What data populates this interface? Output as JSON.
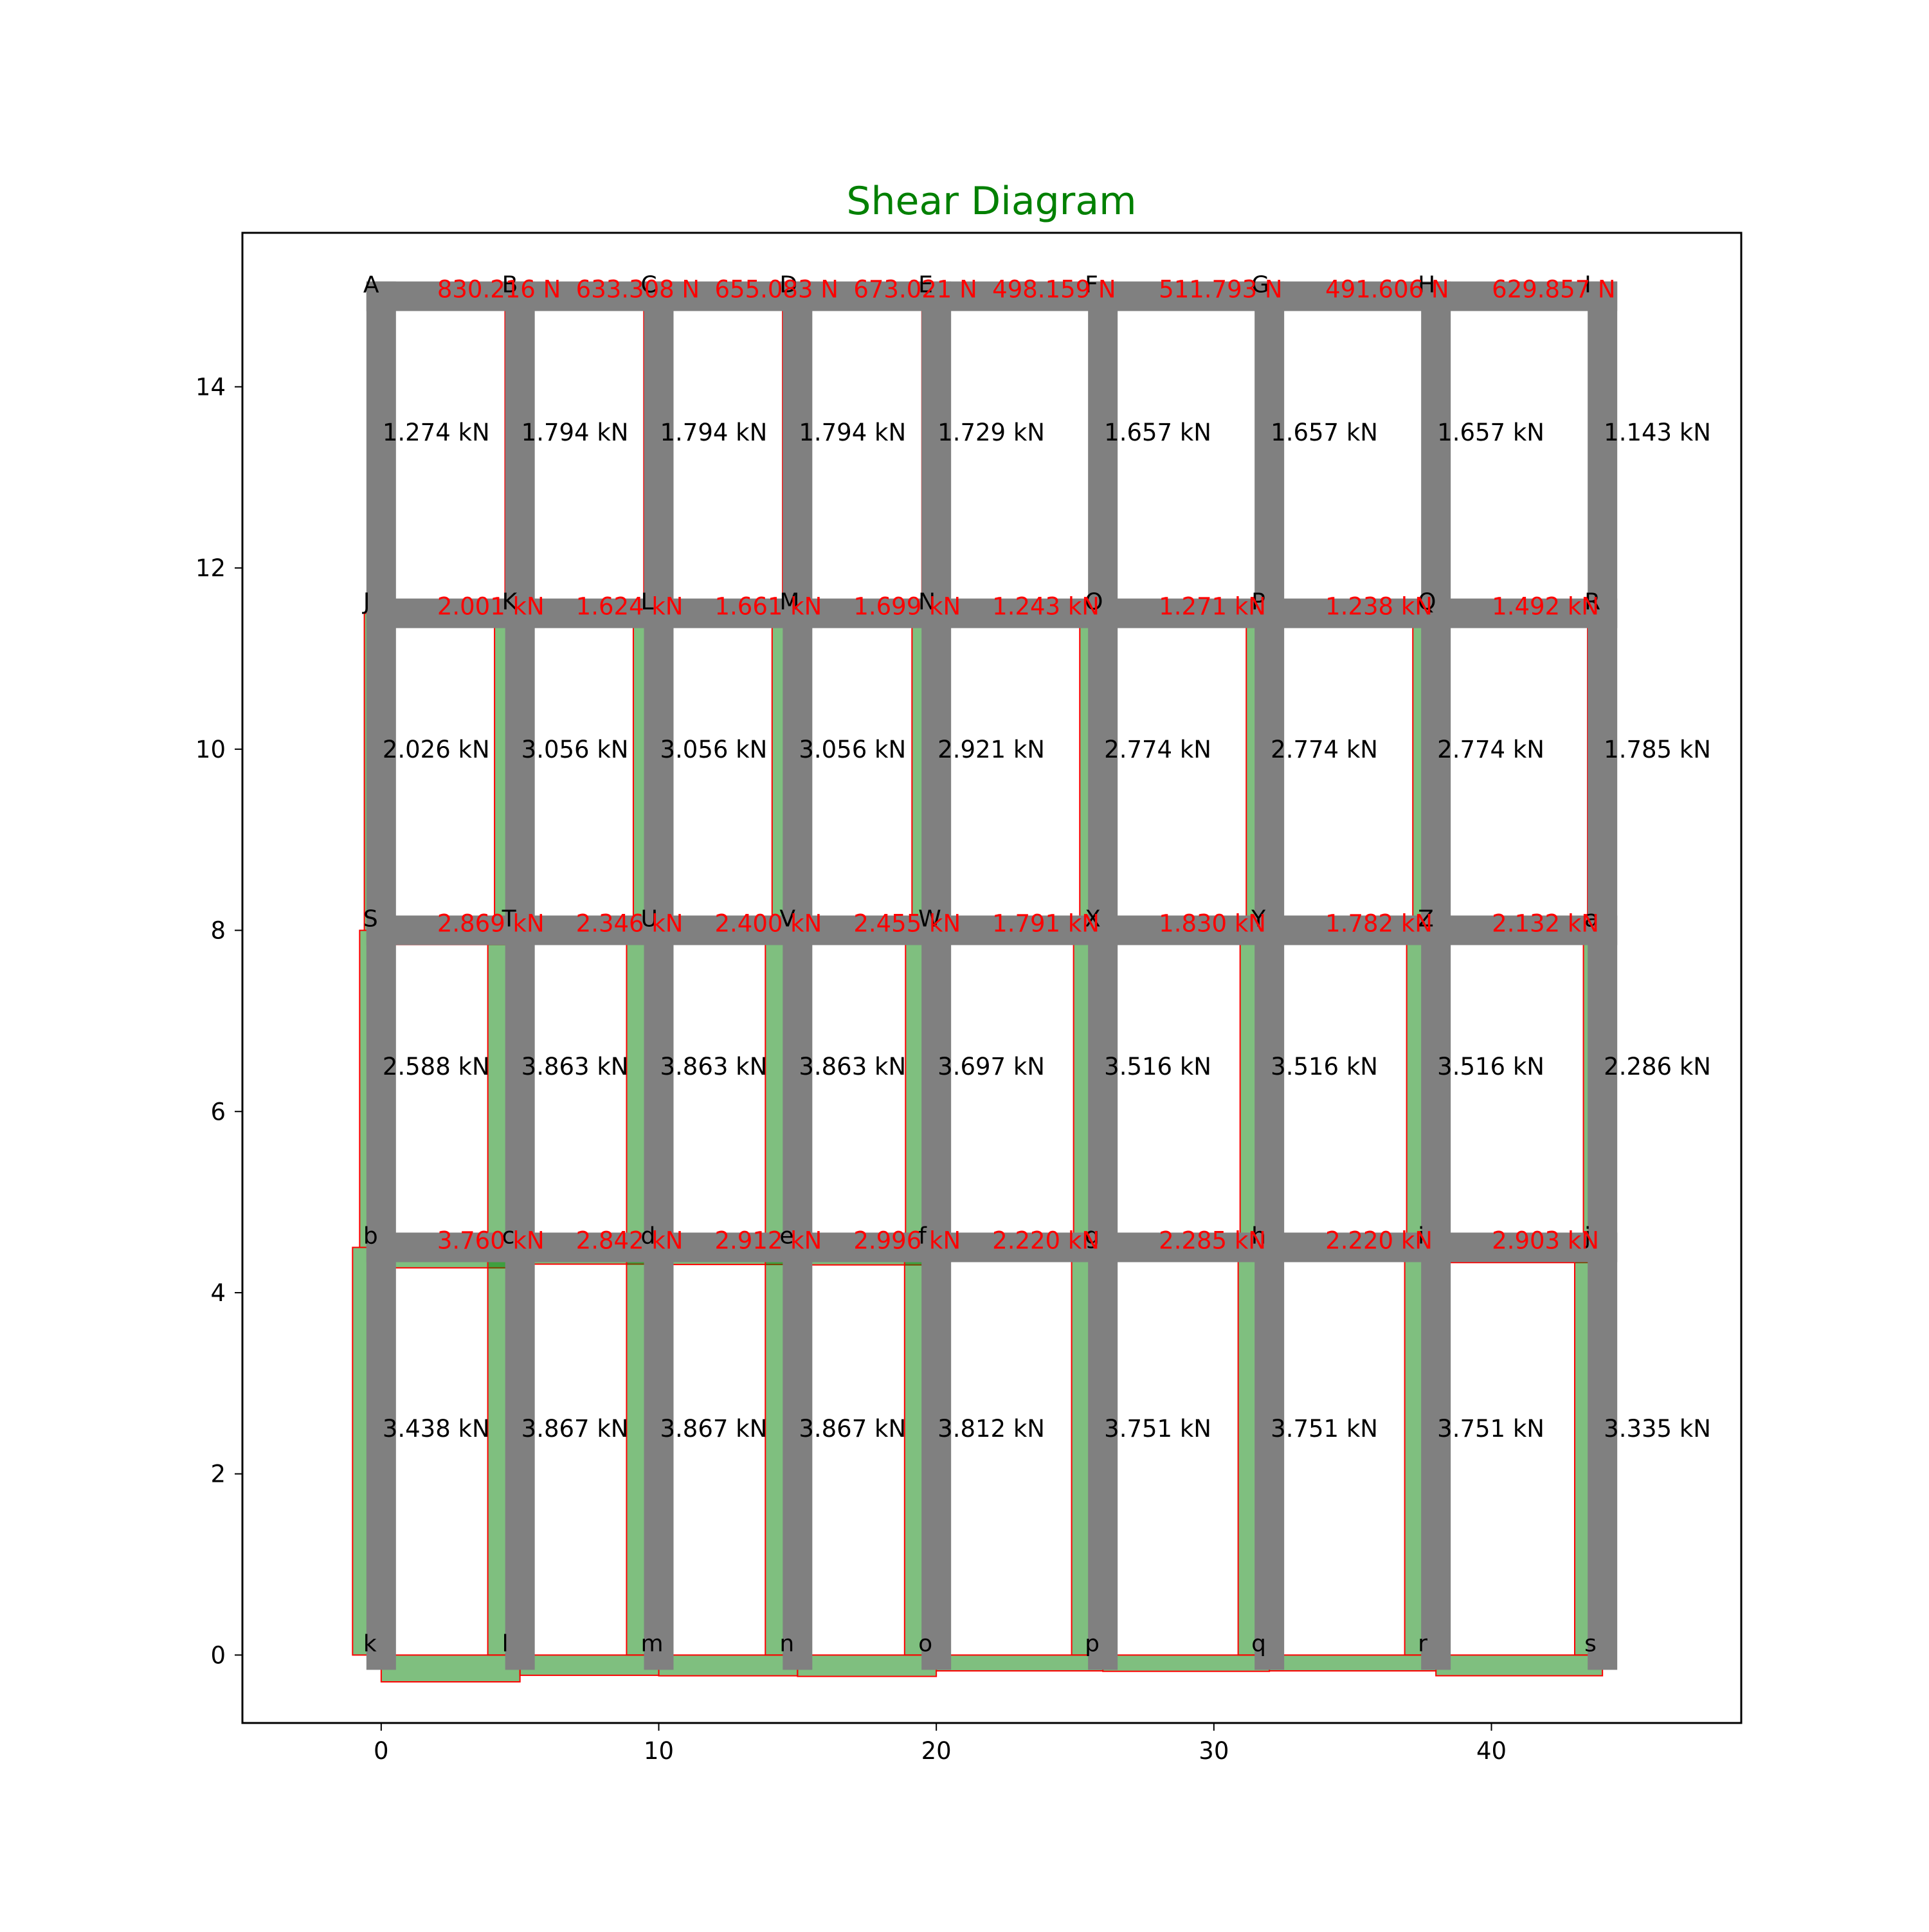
{
  "chart_data": {
    "type": "frame-shear-diagram",
    "title": "Shear Diagram",
    "title_color": "#008000",
    "frame_color": "#808080",
    "fill_color": "#008000",
    "outline_color": "#ff0000",
    "label_beam_color": "#ff0000",
    "label_column_color": "#000000",
    "xlim": [
      -5,
      49
    ],
    "ylim": [
      -0.75,
      15.7
    ],
    "xticks": [
      0,
      10,
      20,
      30,
      40
    ],
    "yticks": [
      0,
      2,
      4,
      6,
      8,
      10,
      12,
      14
    ],
    "column_x": [
      0,
      5,
      10,
      15,
      20,
      26,
      32,
      38,
      44
    ],
    "levels_y": [
      15,
      11.5,
      8,
      4.5,
      0
    ],
    "node_labels": [
      [
        "A",
        "B",
        "C",
        "D",
        "E",
        "F",
        "G",
        "H",
        "I"
      ],
      [
        "J",
        "K",
        "L",
        "M",
        "N",
        "O",
        "P",
        "Q",
        "R"
      ],
      [
        "S",
        "T",
        "U",
        "V",
        "W",
        "X",
        "Y",
        "Z",
        "a"
      ],
      [
        "b",
        "c",
        "d",
        "e",
        "f",
        "g",
        "h",
        "i",
        "j"
      ],
      [
        "k",
        "l",
        "m",
        "n",
        "o",
        "p",
        "q",
        "r",
        "s"
      ]
    ],
    "beam_shear_labels": [
      [
        "830.216 N",
        "633.308 N",
        "655.083 N",
        "673.021 N",
        "498.159 N",
        "511.793 N",
        "491.606 N",
        "629.857 N"
      ],
      [
        "2.001 kN",
        "1.624 kN",
        "1.661 kN",
        "1.699 kN",
        "1.243 kN",
        "1.271 kN",
        "1.238 kN",
        "1.492 kN"
      ],
      [
        "2.869 kN",
        "2.346 kN",
        "2.400 kN",
        "2.455 kN",
        "1.791 kN",
        "1.830 kN",
        "1.782 kN",
        "2.132 kN"
      ],
      [
        "3.760 kN",
        "2.842 kN",
        "2.912 kN",
        "2.996 kN",
        "2.220 kN",
        "2.285 kN",
        "2.220 kN",
        "2.903 kN"
      ]
    ],
    "beam_shear_kN": [
      [
        0.83,
        0.633,
        0.655,
        0.673,
        0.498,
        0.512,
        0.492,
        0.63
      ],
      [
        2.001,
        1.624,
        1.661,
        1.699,
        1.243,
        1.271,
        1.238,
        1.492
      ],
      [
        2.869,
        2.346,
        2.4,
        2.455,
        1.791,
        1.83,
        1.782,
        2.132
      ],
      [
        3.76,
        2.842,
        2.912,
        2.996,
        2.22,
        2.285,
        2.22,
        2.903
      ]
    ],
    "column_shear_labels": [
      [
        "1.274 kN",
        "1.794 kN",
        "1.794 kN",
        "1.794 kN",
        "1.729 kN",
        "1.657 kN",
        "1.657 kN",
        "1.657 kN",
        "1.143 kN"
      ],
      [
        "2.026 kN",
        "3.056 kN",
        "3.056 kN",
        "3.056 kN",
        "2.921 kN",
        "2.774 kN",
        "2.774 kN",
        "2.774 kN",
        "1.785 kN"
      ],
      [
        "2.588 kN",
        "3.863 kN",
        "3.863 kN",
        "3.863 kN",
        "3.697 kN",
        "3.516 kN",
        "3.516 kN",
        "3.516 kN",
        "2.286 kN"
      ],
      [
        "3.438 kN",
        "3.867 kN",
        "3.867 kN",
        "3.867 kN",
        "3.812 kN",
        "3.751 kN",
        "3.751 kN",
        "3.751 kN",
        "3.335 kN"
      ]
    ],
    "column_shear_kN": [
      [
        1.274,
        1.794,
        1.794,
        1.794,
        1.729,
        1.657,
        1.657,
        1.657,
        1.143
      ],
      [
        2.026,
        3.056,
        3.056,
        3.056,
        2.921,
        2.774,
        2.774,
        2.774,
        1.785
      ],
      [
        2.588,
        3.863,
        3.863,
        3.863,
        3.697,
        3.516,
        3.516,
        3.516,
        2.286
      ],
      [
        3.438,
        3.867,
        3.867,
        3.867,
        3.812,
        3.751,
        3.751,
        3.751,
        3.335
      ]
    ]
  }
}
